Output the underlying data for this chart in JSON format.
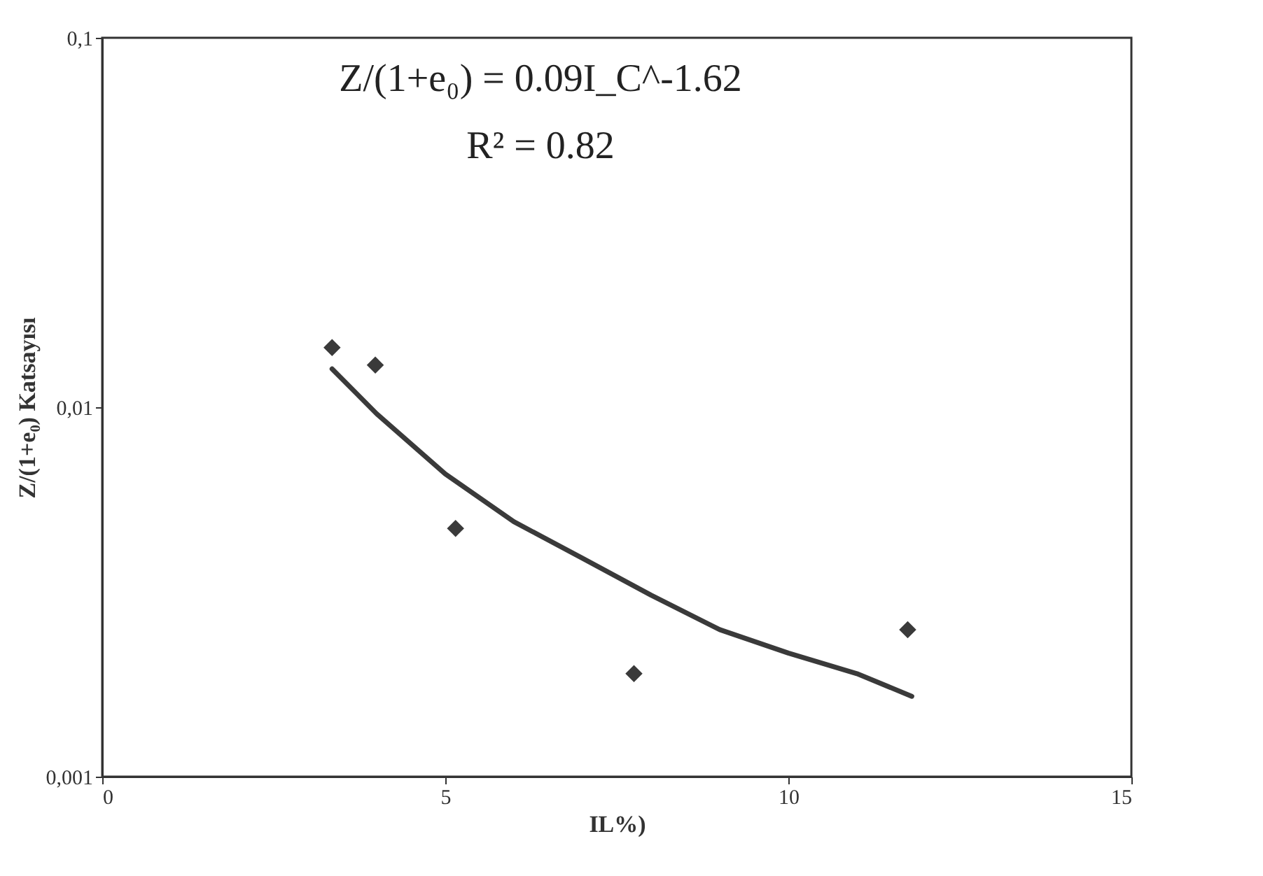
{
  "chart_data": {
    "type": "scatter",
    "xlabel": "IL%)",
    "ylabel": "Z/(1+e₀) Katsayısı",
    "annotations": [
      "Z/(1+e₀) = 0.09I_C^-1.62",
      "R² = 0.82"
    ],
    "log": "y",
    "grid": false,
    "xlim": [
      0,
      15
    ],
    "xticks": [
      0,
      5,
      10,
      15
    ],
    "ylim": [
      0.001,
      0.1
    ],
    "yticks": [
      {
        "value": 0.001,
        "label": "0,001"
      },
      {
        "value": 0.01,
        "label": "0,01"
      },
      {
        "value": 0.1,
        "label": "0,1"
      }
    ],
    "series": [
      {
        "type": "scatter",
        "marker": "diamond",
        "color": "#3a3a3a",
        "x": [
          3.35,
          3.98,
          5.15,
          7.75,
          11.74
        ],
        "values": [
          0.0145,
          0.013,
          0.0047,
          0.0019,
          0.0025
        ]
      },
      {
        "type": "line",
        "marker": "none",
        "line_style": "solid",
        "color": "#3a3a3a",
        "x": [
          3.35,
          4,
          5,
          6,
          7,
          8,
          9,
          10,
          11,
          11.8
        ],
        "values": [
          0.0127,
          0.0096,
          0.0066,
          0.0049,
          0.0039,
          0.0031,
          0.0025,
          0.00216,
          0.0019,
          0.00165
        ]
      }
    ]
  }
}
